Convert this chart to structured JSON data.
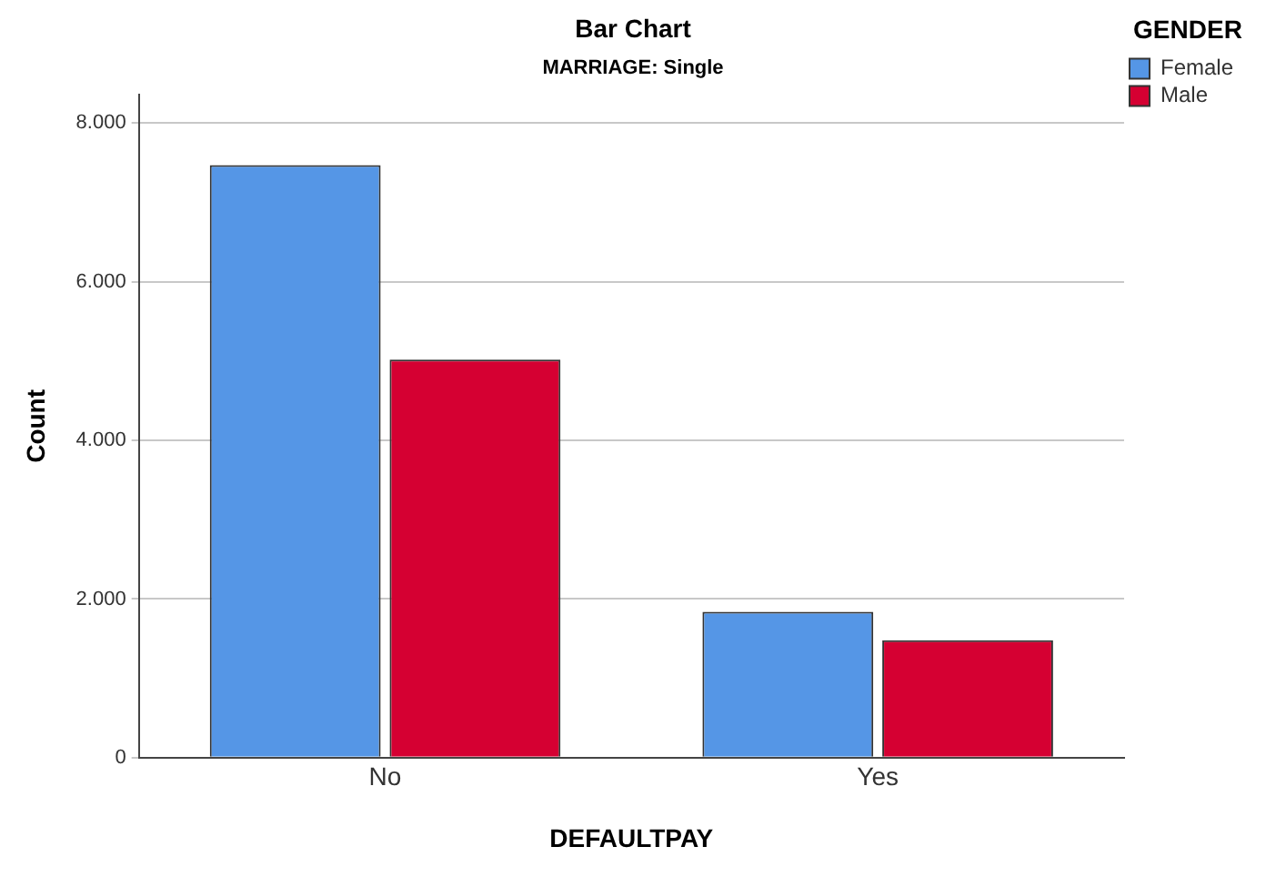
{
  "chart_data": {
    "type": "bar",
    "title": "Bar Chart",
    "subtitle": "MARRIAGE: Single",
    "xlabel": "DEFAULTPAY",
    "ylabel": "Count",
    "legend_title": "GENDER",
    "categories": [
      "No",
      "Yes"
    ],
    "series": [
      {
        "name": "Female",
        "color": "#5596e6",
        "values": [
          7470,
          1840
        ]
      },
      {
        "name": "Male",
        "color": "#d50032",
        "values": [
          5020,
          1480
        ]
      }
    ],
    "ylim": [
      0,
      8360
    ],
    "yticks": [
      {
        "value": 0,
        "label": "0"
      },
      {
        "value": 2000,
        "label": "2.000"
      },
      {
        "value": 4000,
        "label": "4.000"
      },
      {
        "value": 6000,
        "label": "6.000"
      },
      {
        "value": 8000,
        "label": "8.000"
      }
    ],
    "grid": "y",
    "legend": "top right"
  }
}
